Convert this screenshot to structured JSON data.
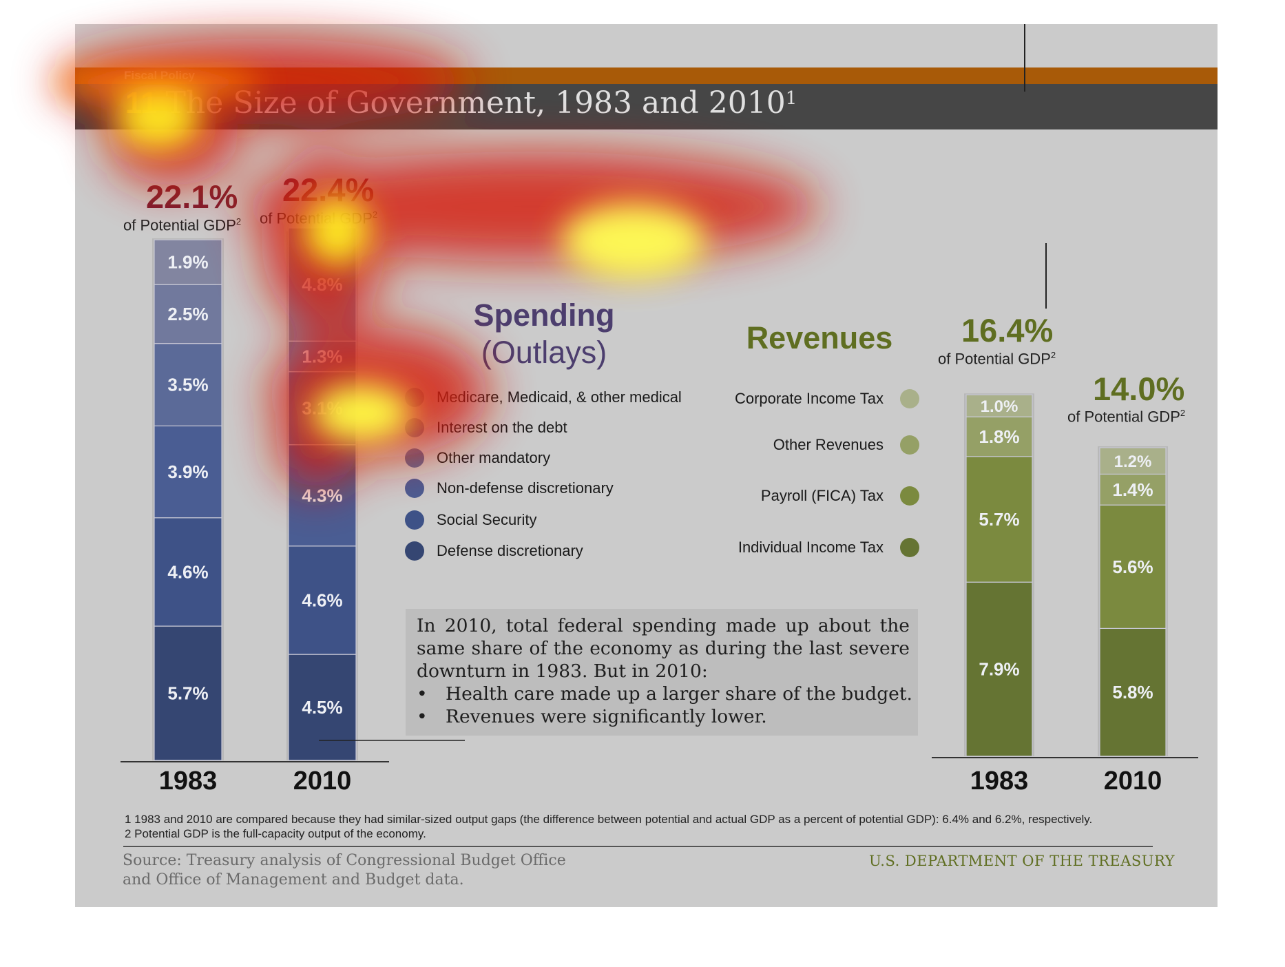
{
  "header": {
    "section_label": "Fiscal Policy",
    "title_number": "11",
    "title": "The Size of Government, 1983 and 2010",
    "title_superscript": "1"
  },
  "chart_data": [
    {
      "type": "bar",
      "stacked": true,
      "title": "Spending (Outlays)",
      "title_line1": "Spending",
      "title_line2": "(Outlays)",
      "categories": [
        "1983",
        "2010"
      ],
      "totals": [
        "22.1%",
        "22.4%"
      ],
      "total_values": [
        22.1,
        22.4
      ],
      "total_label": "of Potential GDP",
      "total_label_sup": "2",
      "series": [
        {
          "name": "Defense discretionary",
          "values": [
            5.7,
            4.5
          ],
          "labels": [
            "5.7%",
            "4.5%"
          ],
          "color": "#354672"
        },
        {
          "name": "Social Security",
          "values": [
            4.6,
            4.6
          ],
          "labels": [
            "4.6%",
            "4.6%"
          ],
          "color": "#3e5287"
        },
        {
          "name": "Non-defense discretionary",
          "values": [
            3.9,
            4.3
          ],
          "labels": [
            "3.9%",
            "4.3%"
          ],
          "color": "#4a5d93"
        },
        {
          "name": "Other mandatory",
          "values": [
            3.5,
            3.1
          ],
          "labels": [
            "3.5%",
            "3.1%"
          ],
          "color": "#5b6a98"
        },
        {
          "name": "Interest on the debt",
          "values": [
            2.5,
            1.3
          ],
          "labels": [
            "2.5%",
            "1.3%"
          ],
          "color": "#71799d"
        },
        {
          "name": "Medicare, Medicaid, & other medical",
          "values": [
            1.9,
            4.8
          ],
          "labels": [
            "1.9%",
            "4.8%"
          ],
          "color": "#8285a0"
        }
      ],
      "legend_order": [
        "Medicare, Medicaid, & other medical",
        "Interest on the debt",
        "Other mandatory",
        "Non-defense discretionary",
        "Social Security",
        "Defense discretionary"
      ],
      "legend_colors": [
        "#8285a0",
        "#71799d",
        "#5b6a98",
        "#4a5d93",
        "#3e5287",
        "#354672"
      ],
      "legend_placement": "right",
      "total_color": "#7a1f30",
      "grid": false
    },
    {
      "type": "bar",
      "stacked": true,
      "title": "Revenues",
      "categories": [
        "1983",
        "2010"
      ],
      "totals": [
        "16.4%",
        "14.0%"
      ],
      "total_values": [
        16.4,
        14.0
      ],
      "total_label": "of Potential GDP",
      "total_label_sup": "2",
      "series": [
        {
          "name": "Individual Income Tax",
          "values": [
            7.9,
            5.8
          ],
          "labels": [
            "7.9%",
            "5.8%"
          ],
          "color": "#657433"
        },
        {
          "name": "Payroll (FICA) Tax",
          "values": [
            5.7,
            5.6
          ],
          "labels": [
            "5.7%",
            "5.6%"
          ],
          "color": "#7b8a3f"
        },
        {
          "name": "Other Revenues",
          "values": [
            1.8,
            1.4
          ],
          "labels": [
            "1.8%",
            "1.4%"
          ],
          "color": "#95a066"
        },
        {
          "name": "Corporate Income Tax",
          "values": [
            1.0,
            1.2
          ],
          "labels": [
            "1.0%",
            "1.2%"
          ],
          "color": "#a9b08a"
        }
      ],
      "legend_order": [
        "Corporate Income Tax",
        "Other Revenues",
        "Payroll (FICA) Tax",
        "Individual Income Tax"
      ],
      "legend_colors": [
        "#a9b08a",
        "#95a066",
        "#7b8a3f",
        "#657433"
      ],
      "legend_placement": "left",
      "total_color": "#5f6e21",
      "grid": false
    }
  ],
  "note": {
    "text": "In 2010, total federal spending made up about the same share of the economy as during the last severe downturn in 1983. But in 2010:",
    "bullets": [
      "Health care made up a larger share of the budget.",
      "Revenues were significantly lower."
    ],
    "bullet_char": "•"
  },
  "footnotes": {
    "one": "1 1983 and 2010 are compared because they had similar-sized output gaps (the difference between potential and actual GDP as a percent of potential GDP): 6.4% and 6.2%, respectively.",
    "two": "2 Potential GDP is the full-capacity output of the economy."
  },
  "footer": {
    "source_line1": "Source: Treasury analysis of Congressional Budget Office",
    "source_line2": "and Office of Management and Budget data.",
    "agency": "U.S. DEPARTMENT OF THE TREASURY"
  },
  "colors": {
    "panel": "#cbcbcb",
    "orange_bar": "#a85a08",
    "title_bar": "#464646",
    "title_number": "#e8d21a"
  }
}
